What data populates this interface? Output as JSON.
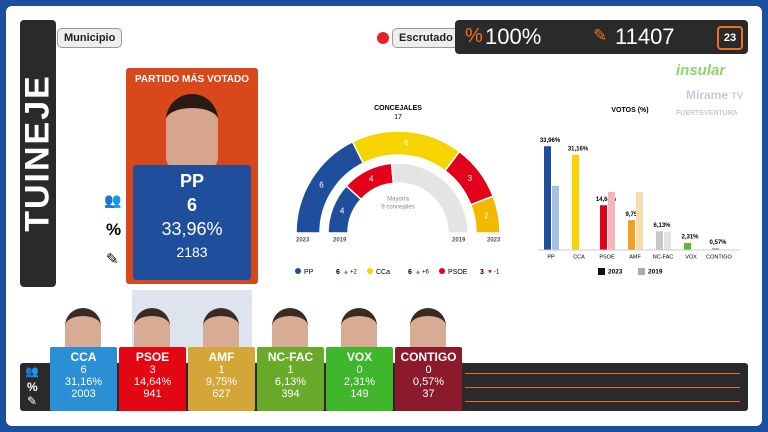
{
  "header": {
    "title": "TUINEJE",
    "municipio": "Municipio",
    "escrutado": "Escrutado",
    "pct_symbol": "%",
    "scrutinized": "100%",
    "votes": 11407,
    "badge": 23
  },
  "logos": [
    "insular",
    "Mírame",
    "TV",
    "FUERTEVENTURA"
  ],
  "winner": {
    "heading": "PARTIDO MÁS VOTADO",
    "party": "PP",
    "seats": 6,
    "pct": "33,96%",
    "votes": 2183
  },
  "row_label": "%",
  "parties": [
    {
      "name": "CCA",
      "seats": 6,
      "pct": "31,16%",
      "votes": 2003,
      "color": "#2b8fd6"
    },
    {
      "name": "PSOE",
      "seats": 3,
      "pct": "14,64%",
      "votes": 941,
      "color": "#e30613"
    },
    {
      "name": "AMF",
      "seats": 1,
      "pct": "9,75%",
      "votes": 627,
      "color": "#d4a537"
    },
    {
      "name": "NC-FAC",
      "seats": 1,
      "pct": "6,13%",
      "votes": 394,
      "color": "#6aaa2a"
    },
    {
      "name": "VOX",
      "seats": 0,
      "pct": "2,31%",
      "votes": 149,
      "color": "#3fb62c"
    },
    {
      "name": "CONTIGO",
      "seats": 0,
      "pct": "0,57%",
      "votes": 37,
      "color": "#8b1a2b"
    }
  ],
  "concejales": {
    "title": "CONCEJALES",
    "total": 17,
    "majority": "Mayoría",
    "majority_seats": "9 concejales",
    "years": [
      "2023",
      "2019",
      "2019",
      "2023"
    ],
    "outer": {
      "values": [
        6,
        6,
        3,
        2
      ],
      "colors": [
        "#1f4e9c",
        "#f5d400",
        "#e3001b",
        "#f5b800"
      ]
    },
    "inner": {
      "values": [
        4,
        4
      ],
      "colors": [
        "#1f4e9c",
        "#e3001b"
      ]
    },
    "legend": [
      {
        "name": "PP",
        "seats": 6,
        "change": {
          "value": 2,
          "label": "+2"
        },
        "color": "#1f4e9c"
      },
      {
        "name": "CCa",
        "seats": 6,
        "change": {
          "value": 6,
          "label": "+6"
        },
        "color": "#f5d400"
      },
      {
        "name": "PSOE",
        "seats": 3,
        "change": {
          "value": -1,
          "label": "-1"
        },
        "color": "#e3001b"
      }
    ]
  },
  "chart_data": {
    "type": "bar",
    "title": "VOTOS (%)",
    "categories": [
      "PP",
      "CCA",
      "PSOE",
      "AMF",
      "NC-FAC",
      "VOX",
      "CONTIGO"
    ],
    "ylim": [
      0,
      36
    ],
    "series": [
      {
        "name": "2023",
        "color": "#111111",
        "colors": [
          "#1f4e9c",
          "#f5d400",
          "#e3001b",
          "#f0a020",
          "#c8c8c8",
          "#5dbb31",
          "#999999"
        ],
        "values": [
          33.96,
          31.16,
          14.64,
          9.75,
          6.13,
          2.31,
          0.57
        ],
        "value_labels": [
          "33,96%",
          "31,16%",
          "14,64%",
          "9,75%",
          "6,13%",
          "2,31%",
          "0,57%"
        ]
      },
      {
        "name": "2019",
        "color": "#aaaaaa",
        "colors": [
          "#a9bfe3",
          "#fbeaa0",
          "#f4b6bd",
          "#f7dcae",
          "#e2e2e2",
          "#c5e6b5",
          "#d5d5d5"
        ],
        "values": [
          21,
          null,
          19,
          19,
          6,
          null,
          null
        ]
      }
    ]
  }
}
